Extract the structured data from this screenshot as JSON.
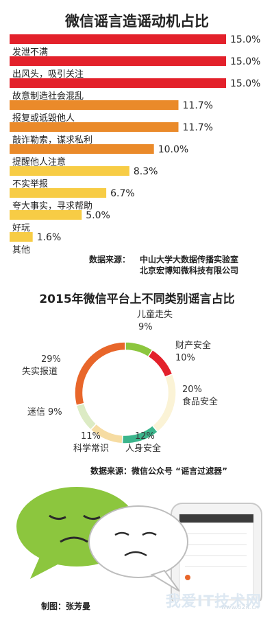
{
  "colors": {
    "bar_red": "#e3212b",
    "bar_orange": "#ea8a2a",
    "bar_yellow": "#f7cc45",
    "bubble_green": "#8cc63e"
  },
  "chart_data": [
    {
      "type": "bar",
      "orientation": "horizontal",
      "title": "微信谣言造谣动机占比",
      "categories": [
        "发泄不满",
        "出风头，吸引关注",
        "故意制造社会混乱",
        "报复或诋毁他人",
        "敲诈勒索，谋求私利",
        "提醒他人注意",
        "不实举报",
        "夸大事实，寻求帮助",
        "好玩",
        "其他"
      ],
      "values": [
        15.0,
        15.0,
        15.0,
        11.7,
        11.7,
        10.0,
        8.3,
        6.7,
        5.0,
        1.6
      ],
      "value_labels": [
        "15.0%",
        "15.0%",
        "15.0%",
        "11.7%",
        "11.7%",
        "10.0%",
        "8.3%",
        "6.7%",
        "5.0%",
        "1.6%"
      ],
      "bar_colors": [
        "#e3212b",
        "#e3212b",
        "#e3212b",
        "#ea8a2a",
        "#ea8a2a",
        "#ea8a2a",
        "#f7cc45",
        "#f7cc45",
        "#f7cc45",
        "#f7cc45"
      ],
      "xlim": [
        0,
        15
      ],
      "grid": false,
      "source_label": "数据来源：",
      "source_lines": [
        "中山大学大数据传播实验室",
        "北京宏博知微科技有限公司"
      ]
    },
    {
      "type": "pie",
      "style": "donut",
      "title": "2015年微信平台上不同类别谣言占比",
      "slices": [
        {
          "name": "儿童走失",
          "value": 9,
          "label": "9%",
          "color": "#8cc63e"
        },
        {
          "name": "财产安全",
          "value": 10,
          "label": "10%",
          "color": "#e3212b"
        },
        {
          "name": "食品安全",
          "value": 20,
          "label": "20%",
          "color": "#fbf3d6"
        },
        {
          "name": "人身安全",
          "value": 12,
          "label": "12%",
          "color": "#3bb58c"
        },
        {
          "name": "科学常识",
          "value": 11,
          "label": "11%",
          "color": "#f6dca2"
        },
        {
          "name": "迷信",
          "value": 9,
          "label": "9%",
          "color": "#dcebc4"
        },
        {
          "name": "失实报道",
          "value": 29,
          "label": "29%",
          "color": "#e8662a"
        }
      ],
      "source_text": "数据来源：微信公众号 “谣言过滤器”"
    }
  ],
  "credit": "制图：张芳曼",
  "watermark": {
    "main": "我爱IT技术网",
    "sub": "www.52it.cn"
  }
}
